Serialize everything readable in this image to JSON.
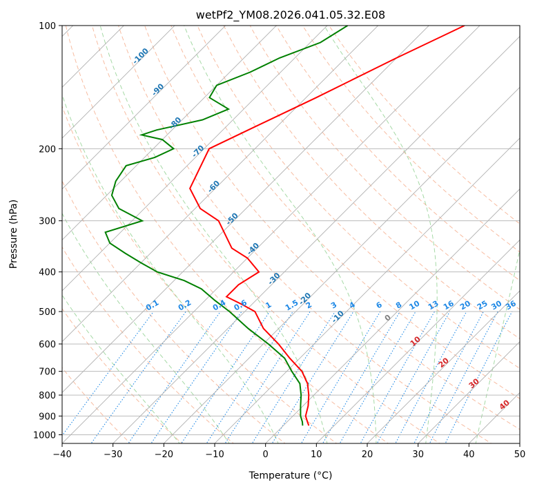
{
  "chart_data": {
    "type": "line",
    "title": "wetPf2_YM08.2026.041.05.32.E08",
    "xlabel": "Temperature (°C)",
    "ylabel": "Pressure (hPa)",
    "xlim": [
      -40,
      50
    ],
    "ylim": [
      1050,
      100
    ],
    "y_scale": "log",
    "grid": true,
    "x_ticks": [
      -40,
      -30,
      -20,
      -10,
      0,
      10,
      20,
      30,
      40,
      50
    ],
    "y_ticks": [
      100,
      200,
      300,
      400,
      500,
      600,
      700,
      800,
      900,
      1000
    ],
    "skew": 35,
    "series": [
      {
        "color": "#ff0000",
        "points": [
          [
            100,
            -43
          ],
          [
            120,
            -50
          ],
          [
            150,
            -58
          ],
          [
            180,
            -65
          ],
          [
            200,
            -69
          ],
          [
            250,
            -65
          ],
          [
            280,
            -59
          ],
          [
            300,
            -53
          ],
          [
            350,
            -45
          ],
          [
            370,
            -40
          ],
          [
            400,
            -35
          ],
          [
            430,
            -36.5
          ],
          [
            460,
            -36.5
          ],
          [
            480,
            -32
          ],
          [
            500,
            -28
          ],
          [
            550,
            -23
          ],
          [
            600,
            -17
          ],
          [
            650,
            -12
          ],
          [
            700,
            -7
          ],
          [
            750,
            -3.5
          ],
          [
            800,
            -1
          ],
          [
            850,
            1
          ],
          [
            900,
            2.5
          ],
          [
            930,
            4
          ],
          [
            950,
            5
          ]
        ]
      },
      {
        "color": "#008000",
        "points": [
          [
            100,
            -66
          ],
          [
            110,
            -68
          ],
          [
            120,
            -73
          ],
          [
            130,
            -76
          ],
          [
            140,
            -80
          ],
          [
            150,
            -79
          ],
          [
            160,
            -73
          ],
          [
            170,
            -76
          ],
          [
            180,
            -83
          ],
          [
            185,
            -85
          ],
          [
            190,
            -80
          ],
          [
            200,
            -76
          ],
          [
            210,
            -78
          ],
          [
            220,
            -82
          ],
          [
            240,
            -81
          ],
          [
            260,
            -79
          ],
          [
            280,
            -75
          ],
          [
            300,
            -68
          ],
          [
            320,
            -73
          ],
          [
            340,
            -70
          ],
          [
            360,
            -65
          ],
          [
            380,
            -60
          ],
          [
            400,
            -55
          ],
          [
            420,
            -48
          ],
          [
            440,
            -43
          ],
          [
            470,
            -38
          ],
          [
            500,
            -33
          ],
          [
            550,
            -26
          ],
          [
            600,
            -19
          ],
          [
            650,
            -13
          ],
          [
            700,
            -9
          ],
          [
            750,
            -5
          ],
          [
            800,
            -2.5
          ],
          [
            850,
            -0.5
          ],
          [
            900,
            1.5
          ],
          [
            930,
            3
          ],
          [
            950,
            3.8
          ]
        ]
      }
    ],
    "dry_adiabats": [
      -30,
      -20,
      -10,
      0,
      10,
      20,
      30,
      40,
      50,
      60,
      70,
      80,
      90,
      100,
      110,
      120
    ],
    "moist_adiabats": [
      -20,
      -10,
      0,
      10,
      20,
      30,
      40
    ],
    "isotherm_labels": [
      "-100",
      "-90",
      "-80",
      "-70",
      "-60",
      "-50",
      "-40",
      "-30",
      "-20",
      "-10"
    ],
    "mixing_ratio_labels": [
      "0.1",
      "0.2",
      "0.4",
      "0.6",
      "1",
      "1.5",
      "2",
      "3",
      "4",
      "6",
      "8",
      "10",
      "13",
      "16",
      "20",
      "25",
      "30",
      "36"
    ],
    "mixing_ratios": [
      0.1,
      0.2,
      0.4,
      0.6,
      1,
      1.5,
      2,
      3,
      4,
      6,
      8,
      10,
      13,
      16,
      20,
      25,
      30,
      36
    ],
    "wetbulb_labels": [
      "0",
      "10",
      "20",
      "30",
      "40"
    ],
    "colors": {
      "isotherm_label": "#1f77b4",
      "mixing_ratio": "#1e88e5",
      "wetbulb_label": "#d62728",
      "wetbulb_zero_label": "#808080",
      "dry_adiabat": "#f4a582",
      "moist_adiabat": "#8fcf8f",
      "grid": "#b0b0b0"
    }
  }
}
